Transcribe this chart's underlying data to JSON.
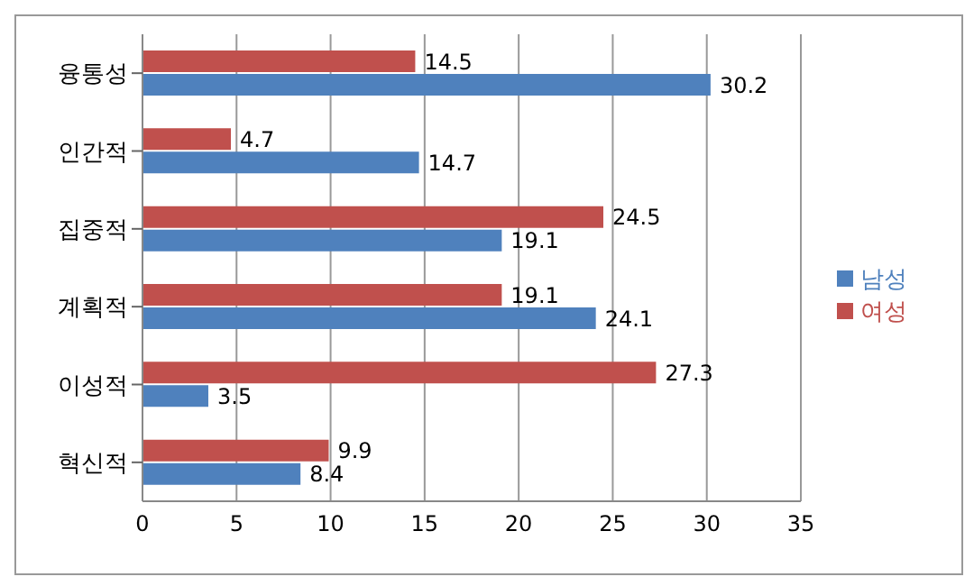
{
  "chart_data": {
    "type": "bar",
    "orientation": "horizontal",
    "categories": [
      "융통성",
      "인간적",
      "집중적",
      "계획적",
      "이성적",
      "혁신적"
    ],
    "series": [
      {
        "name": "여성",
        "color": "#c0504d",
        "values": [
          14.5,
          4.7,
          24.5,
          19.1,
          27.3,
          9.9
        ]
      },
      {
        "name": "남성",
        "color": "#4f81bd",
        "values": [
          30.2,
          14.7,
          19.1,
          24.1,
          3.5,
          8.4
        ]
      }
    ],
    "xlim": [
      0,
      35
    ],
    "xticks": [
      0,
      5,
      10,
      15,
      20,
      25,
      30,
      35
    ],
    "grid": "x",
    "legend": "right",
    "data_labels": true
  }
}
